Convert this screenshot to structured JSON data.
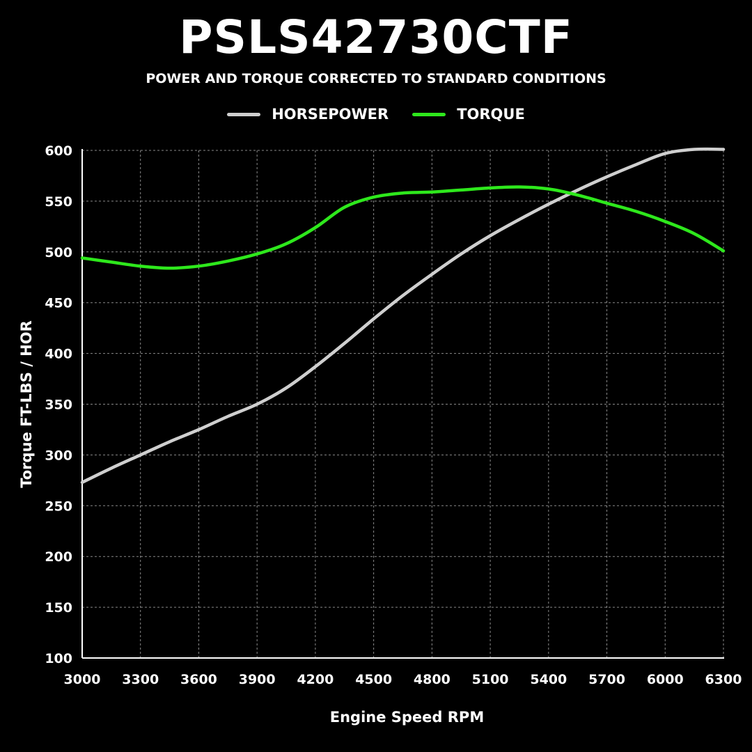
{
  "chart_data": {
    "type": "line",
    "title": "PSLS42730CTF",
    "subtitle": "POWER AND TORQUE CORRECTED TO STANDARD CONDITIONS",
    "xlabel": "Engine Speed RPM",
    "ylabel": "Torque FT-LBS / HOR",
    "xlim": [
      3000,
      6300
    ],
    "ylim": [
      100,
      600
    ],
    "x_ticks": [
      3000,
      3300,
      3600,
      3900,
      4200,
      4500,
      4800,
      5100,
      5400,
      5700,
      6000,
      6300
    ],
    "y_ticks": [
      100,
      150,
      200,
      250,
      300,
      350,
      400,
      450,
      500,
      550,
      600
    ],
    "grid": true,
    "legend_position": "top-center",
    "x": [
      3000,
      3150,
      3300,
      3450,
      3600,
      3750,
      3900,
      4050,
      4200,
      4350,
      4500,
      4650,
      4800,
      4950,
      5100,
      5250,
      5400,
      5550,
      5700,
      5850,
      6000,
      6150,
      6300
    ],
    "series": [
      {
        "name": "HORSEPOWER",
        "color": "#cfcfcf",
        "values": [
          273,
          287,
          300,
          313,
          325,
          338,
          350,
          366,
          387,
          410,
          434,
          457,
          478,
          498,
          516,
          532,
          547,
          561,
          574,
          586,
          597,
          601,
          601
        ]
      },
      {
        "name": "TORQUE",
        "color": "#2ee81c",
        "values": [
          494,
          490,
          486,
          484,
          486,
          491,
          498,
          508,
          524,
          544,
          554,
          558,
          559,
          561,
          563,
          564,
          562,
          556,
          548,
          540,
          530,
          518,
          501
        ]
      }
    ]
  }
}
